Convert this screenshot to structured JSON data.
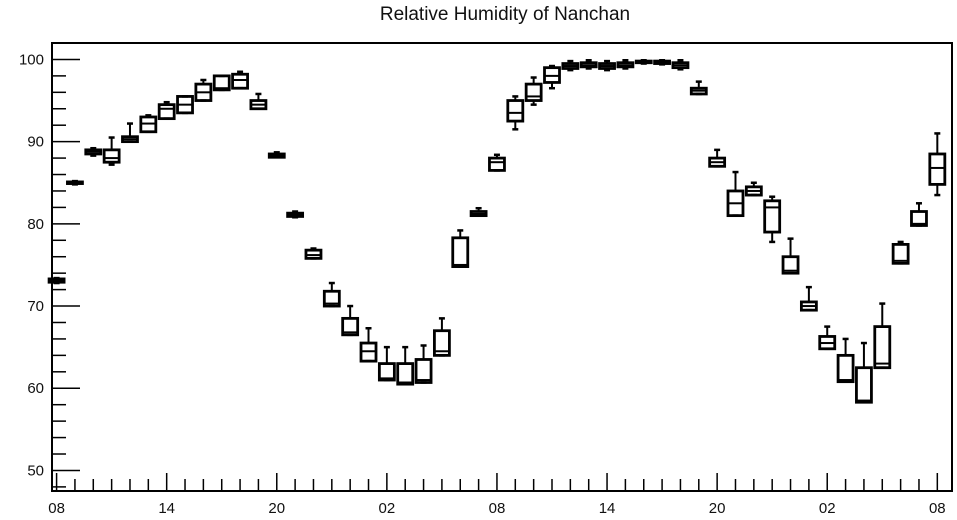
{
  "chart_data": {
    "type": "boxplot",
    "title": "Relative Humidity of Nanchan",
    "xlabel": "",
    "ylabel": "",
    "ylim": [
      47.5,
      102
    ],
    "y_ticks": [
      50,
      60,
      70,
      80,
      90,
      100
    ],
    "x_tick_labels": [
      "08",
      "14",
      "20",
      "02",
      "08",
      "14",
      "20",
      "02",
      "08"
    ],
    "x_tick_hours": [
      0,
      6,
      12,
      18,
      24,
      30,
      36,
      42,
      48
    ],
    "grid": false,
    "boxes": [
      {
        "hour": 0,
        "whisker_low": 72.8,
        "q1": 72.9,
        "median": 73.1,
        "q3": 73.3,
        "whisker_high": 73.4
      },
      {
        "hour": 1,
        "whisker_low": 84.8,
        "q1": 84.9,
        "median": 85.0,
        "q3": 85.1,
        "whisker_high": 85.2
      },
      {
        "hour": 2,
        "whisker_low": 88.3,
        "q1": 88.5,
        "median": 88.8,
        "q3": 89.0,
        "whisker_high": 89.2
      },
      {
        "hour": 3,
        "whisker_low": 87.2,
        "q1": 87.5,
        "median": 88.0,
        "q3": 89.0,
        "whisker_high": 90.5
      },
      {
        "hour": 4,
        "whisker_low": 90.0,
        "q1": 90.0,
        "median": 90.3,
        "q3": 90.6,
        "whisker_high": 92.2
      },
      {
        "hour": 5,
        "whisker_low": 91.2,
        "q1": 91.2,
        "median": 92.2,
        "q3": 93.0,
        "whisker_high": 93.2
      },
      {
        "hour": 6,
        "whisker_low": 92.8,
        "q1": 92.8,
        "median": 94.0,
        "q3": 94.5,
        "whisker_high": 94.8
      },
      {
        "hour": 7,
        "whisker_low": 93.5,
        "q1": 93.5,
        "median": 94.5,
        "q3": 95.5,
        "whisker_high": 95.5
      },
      {
        "hour": 8,
        "whisker_low": 95.0,
        "q1": 95.0,
        "median": 96.0,
        "q3": 97.0,
        "whisker_high": 97.5
      },
      {
        "hour": 9,
        "whisker_low": 96.3,
        "q1": 96.3,
        "median": 96.5,
        "q3": 98.0,
        "whisker_high": 98.0
      },
      {
        "hour": 10,
        "whisker_low": 96.5,
        "q1": 96.5,
        "median": 97.5,
        "q3": 98.2,
        "whisker_high": 98.5
      },
      {
        "hour": 11,
        "whisker_low": 94.0,
        "q1": 94.0,
        "median": 94.5,
        "q3": 95.0,
        "whisker_high": 95.8
      },
      {
        "hour": 12,
        "whisker_low": 88.1,
        "q1": 88.1,
        "median": 88.3,
        "q3": 88.5,
        "whisker_high": 88.7
      },
      {
        "hour": 13,
        "whisker_low": 80.8,
        "q1": 80.9,
        "median": 81.1,
        "q3": 81.3,
        "whisker_high": 81.5
      },
      {
        "hour": 14,
        "whisker_low": 75.8,
        "q1": 75.8,
        "median": 76.2,
        "q3": 76.8,
        "whisker_high": 77.0
      },
      {
        "hour": 15,
        "whisker_low": 70.0,
        "q1": 70.0,
        "median": 70.3,
        "q3": 71.8,
        "whisker_high": 72.8
      },
      {
        "hour": 16,
        "whisker_low": 66.5,
        "q1": 66.5,
        "median": 66.8,
        "q3": 68.5,
        "whisker_high": 70.0
      },
      {
        "hour": 17,
        "whisker_low": 63.3,
        "q1": 63.3,
        "median": 64.5,
        "q3": 65.5,
        "whisker_high": 67.3
      },
      {
        "hour": 18,
        "whisker_low": 61.0,
        "q1": 61.0,
        "median": 61.2,
        "q3": 63.0,
        "whisker_high": 65.0
      },
      {
        "hour": 19,
        "whisker_low": 60.5,
        "q1": 60.5,
        "median": 60.7,
        "q3": 63.0,
        "whisker_high": 65.0
      },
      {
        "hour": 20,
        "whisker_low": 60.7,
        "q1": 60.7,
        "median": 61.0,
        "q3": 63.5,
        "whisker_high": 65.2
      },
      {
        "hour": 21,
        "whisker_low": 64.0,
        "q1": 64.0,
        "median": 64.5,
        "q3": 67.0,
        "whisker_high": 68.5
      },
      {
        "hour": 22,
        "whisker_low": 74.8,
        "q1": 74.8,
        "median": 75.0,
        "q3": 78.3,
        "whisker_high": 79.2
      },
      {
        "hour": 23,
        "whisker_low": 81.0,
        "q1": 81.0,
        "median": 81.2,
        "q3": 81.5,
        "whisker_high": 81.9
      },
      {
        "hour": 24,
        "whisker_low": 86.5,
        "q1": 86.5,
        "median": 87.5,
        "q3": 88.0,
        "whisker_high": 88.4
      },
      {
        "hour": 25,
        "whisker_low": 91.5,
        "q1": 92.5,
        "median": 93.5,
        "q3": 95.0,
        "whisker_high": 95.5
      },
      {
        "hour": 26,
        "whisker_low": 94.5,
        "q1": 95.0,
        "median": 95.5,
        "q3": 97.0,
        "whisker_high": 97.8
      },
      {
        "hour": 27,
        "whisker_low": 96.5,
        "q1": 97.2,
        "median": 98.0,
        "q3": 99.0,
        "whisker_high": 99.2
      },
      {
        "hour": 28,
        "whisker_low": 98.7,
        "q1": 98.9,
        "median": 99.2,
        "q3": 99.5,
        "whisker_high": 99.8
      },
      {
        "hour": 29,
        "whisker_low": 98.9,
        "q1": 99.1,
        "median": 99.3,
        "q3": 99.6,
        "whisker_high": 99.9
      },
      {
        "hour": 30,
        "whisker_low": 98.7,
        "q1": 98.9,
        "median": 99.2,
        "q3": 99.5,
        "whisker_high": 99.8
      },
      {
        "hour": 31,
        "whisker_low": 98.9,
        "q1": 99.1,
        "median": 99.3,
        "q3": 99.6,
        "whisker_high": 99.9
      },
      {
        "hour": 32,
        "whisker_low": 99.5,
        "q1": 99.6,
        "median": 99.7,
        "q3": 99.8,
        "whisker_high": 99.9
      },
      {
        "hour": 33,
        "whisker_low": 99.4,
        "q1": 99.5,
        "median": 99.6,
        "q3": 99.8,
        "whisker_high": 99.9
      },
      {
        "hour": 34,
        "whisker_low": 98.8,
        "q1": 99.0,
        "median": 99.3,
        "q3": 99.6,
        "whisker_high": 99.9
      },
      {
        "hour": 35,
        "whisker_low": 95.8,
        "q1": 95.8,
        "median": 96.2,
        "q3": 96.5,
        "whisker_high": 97.3
      },
      {
        "hour": 36,
        "whisker_low": 87.0,
        "q1": 87.0,
        "median": 87.5,
        "q3": 88.0,
        "whisker_high": 89.0
      },
      {
        "hour": 37,
        "whisker_low": 81.0,
        "q1": 81.0,
        "median": 82.5,
        "q3": 84.0,
        "whisker_high": 86.3
      },
      {
        "hour": 38,
        "whisker_low": 83.5,
        "q1": 83.5,
        "median": 84.0,
        "q3": 84.5,
        "whisker_high": 85.0
      },
      {
        "hour": 39,
        "whisker_low": 77.8,
        "q1": 79.0,
        "median": 82.0,
        "q3": 82.8,
        "whisker_high": 83.3
      },
      {
        "hour": 40,
        "whisker_low": 74.0,
        "q1": 74.0,
        "median": 74.3,
        "q3": 76.0,
        "whisker_high": 78.2
      },
      {
        "hour": 41,
        "whisker_low": 69.5,
        "q1": 69.5,
        "median": 70.0,
        "q3": 70.5,
        "whisker_high": 72.3
      },
      {
        "hour": 42,
        "whisker_low": 64.8,
        "q1": 64.8,
        "median": 65.5,
        "q3": 66.3,
        "whisker_high": 67.5
      },
      {
        "hour": 43,
        "whisker_low": 60.8,
        "q1": 60.8,
        "median": 61.0,
        "q3": 64.0,
        "whisker_high": 66.0
      },
      {
        "hour": 44,
        "whisker_low": 58.3,
        "q1": 58.3,
        "median": 58.5,
        "q3": 62.5,
        "whisker_high": 65.5
      },
      {
        "hour": 45,
        "whisker_low": 62.5,
        "q1": 62.5,
        "median": 63.0,
        "q3": 67.5,
        "whisker_high": 70.3
      },
      {
        "hour": 46,
        "whisker_low": 75.2,
        "q1": 75.2,
        "median": 75.5,
        "q3": 77.5,
        "whisker_high": 77.8
      },
      {
        "hour": 47,
        "whisker_low": 79.8,
        "q1": 79.8,
        "median": 80.0,
        "q3": 81.5,
        "whisker_high": 82.5
      },
      {
        "hour": 48,
        "whisker_low": 83.5,
        "q1": 84.8,
        "median": 86.8,
        "q3": 88.5,
        "whisker_high": 91.0
      }
    ]
  }
}
